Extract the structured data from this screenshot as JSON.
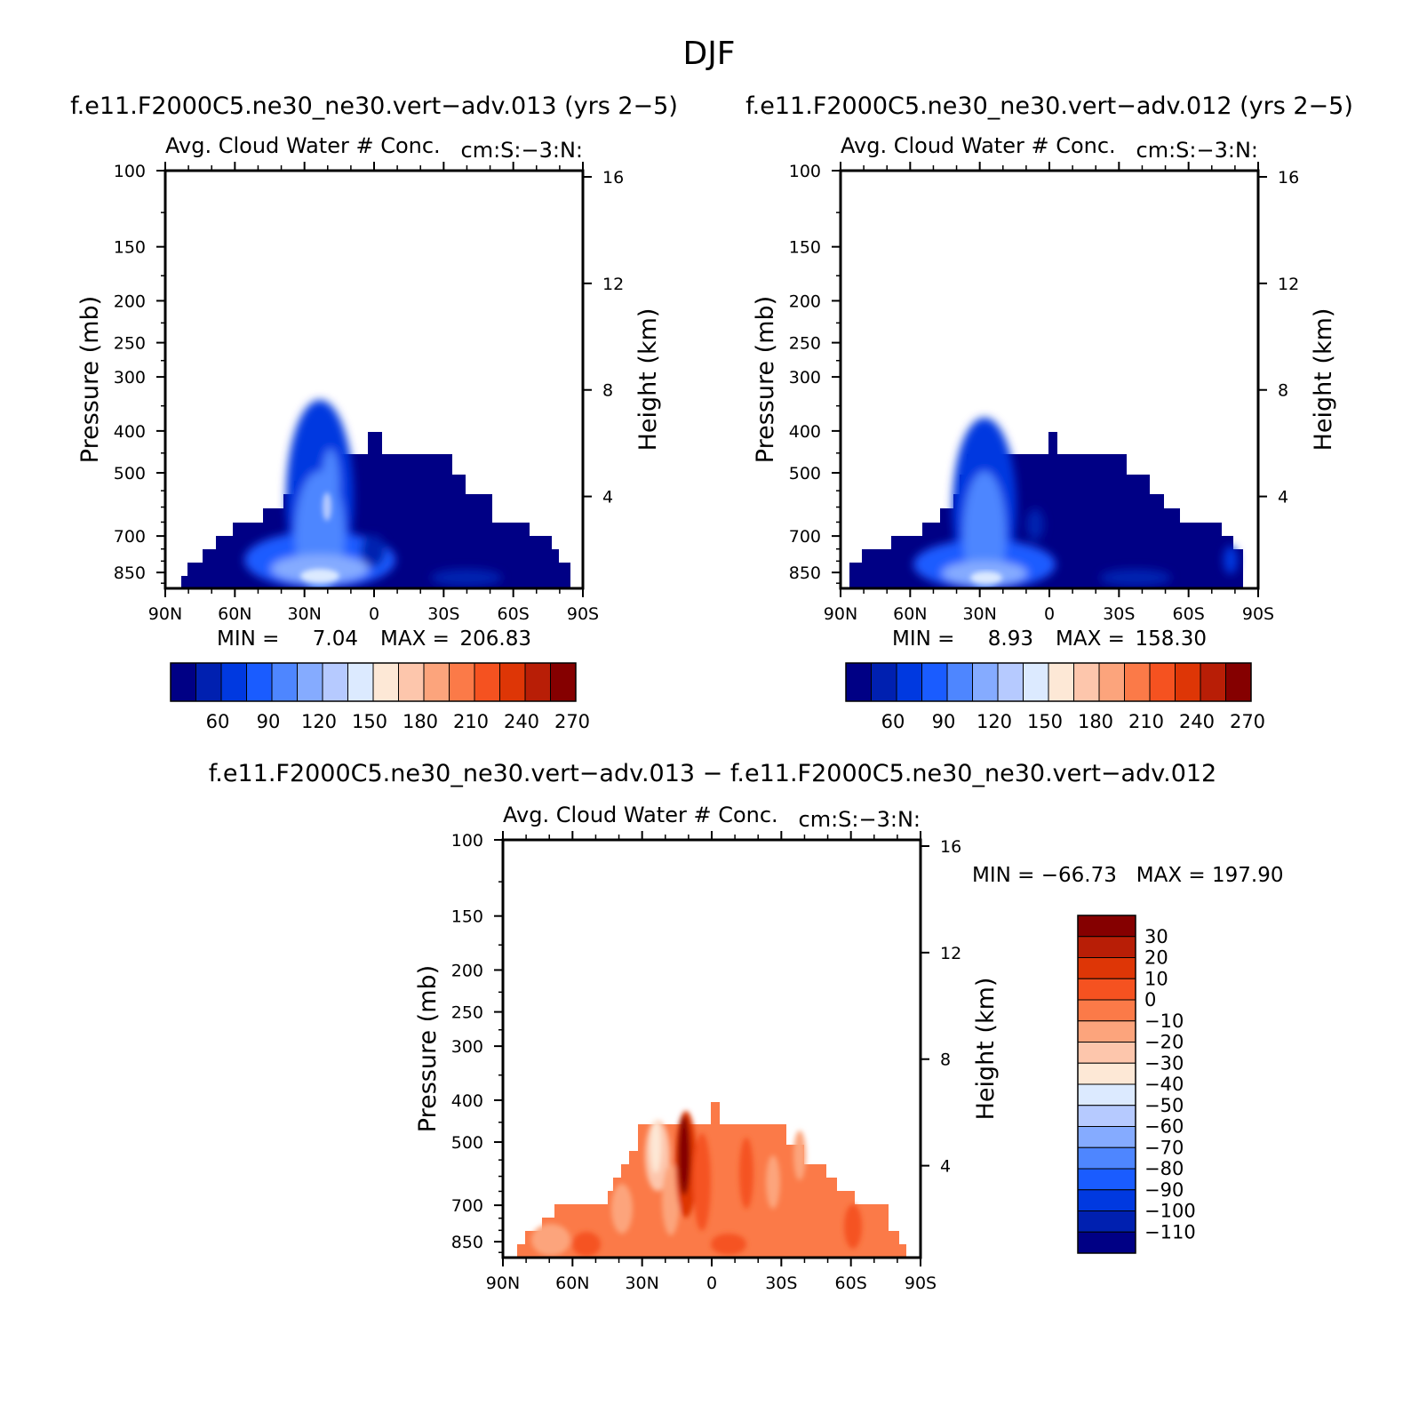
{
  "title": "DJF",
  "colors": {
    "blue_scale": [
      "#000085",
      "#0020b0",
      "#0039e0",
      "#1a5cff",
      "#4e86ff",
      "#85abff",
      "#b6caff",
      "#dceaff",
      "#fde8d6",
      "#fdc6ac",
      "#fca47c",
      "#fb7a48",
      "#f55220",
      "#de3606",
      "#b81e06",
      "#850000"
    ],
    "diff_scale": [
      "#000085",
      "#0020b0",
      "#0039e0",
      "#1a5cff",
      "#4e86ff",
      "#85abff",
      "#b6caff",
      "#dceaff",
      "#fde8d6",
      "#fdc6ac",
      "#fca47c",
      "#fb7a48",
      "#f55220",
      "#de3606",
      "#b81e06",
      "#850000"
    ]
  },
  "panels": {
    "p1": {
      "case_title": "f.e11.F2000C5.ne30_ne30.vert−adv.013 (yrs 2−5)",
      "variable": "Avg. Cloud Water # Conc.",
      "units": "cm:S:−3:N:",
      "min_label": "MIN =",
      "min_value": "7.04",
      "max_label": "MAX =",
      "max_value": "206.83",
      "colorbar_labels": [
        "60",
        "90",
        "120",
        "150",
        "180",
        "210",
        "240",
        "270"
      ]
    },
    "p2": {
      "case_title": "f.e11.F2000C5.ne30_ne30.vert−adv.012 (yrs 2−5)",
      "variable": "Avg. Cloud Water # Conc.",
      "units": "cm:S:−3:N:",
      "min_label": "MIN =",
      "min_value": "8.93",
      "max_label": "MAX =",
      "max_value": "158.30",
      "colorbar_labels": [
        "60",
        "90",
        "120",
        "150",
        "180",
        "210",
        "240",
        "270"
      ]
    },
    "p3": {
      "case_title": "f.e11.F2000C5.ne30_ne30.vert−adv.013 − f.e11.F2000C5.ne30_ne30.vert−adv.012",
      "variable": "Avg. Cloud Water # Conc.",
      "units": "cm:S:−3:N:",
      "minmax": "MIN = −66.73   MAX = 197.90",
      "colorbar_labels": [
        "30",
        "20",
        "10",
        "0",
        "−10",
        "−20",
        "−30",
        "−40",
        "−50",
        "−60",
        "−70",
        "−80",
        "−90",
        "−100",
        "−110"
      ]
    }
  },
  "chart_data": [
    {
      "type": "heatmap",
      "title": "Avg. Cloud Water # Conc.",
      "subtitle": "f.e11.F2000C5.ne30_ne30.vert−adv.013 (yrs 2−5)",
      "units": "cm:S:−3:N:",
      "xlabel": "",
      "ylabel": "Pressure (mb)",
      "ylabel_right": "Height (km)",
      "x_ticks": [
        "90N",
        "60N",
        "30N",
        "0",
        "30S",
        "60S",
        "90S"
      ],
      "y_ticks": [
        100,
        150,
        200,
        250,
        300,
        400,
        500,
        700,
        850
      ],
      "y_right_ticks": [
        16,
        12,
        8,
        4
      ],
      "x_range": [
        90,
        -90
      ],
      "y_range": [
        100,
        925
      ],
      "y_scale": "log",
      "z_min": 7.04,
      "z_max": 206.83,
      "colorbar": [
        "60",
        "90",
        "120",
        "150",
        "180",
        "210",
        "240",
        "270"
      ],
      "region": {
        "description": "cloud number concentration confined below ~430 mb; maximum near 20N low levels",
        "top_pressure_by_lat": [
          [
            -85,
            820
          ],
          [
            -80,
            790
          ],
          [
            -70,
            740
          ],
          [
            -60,
            690
          ],
          [
            -50,
            620
          ],
          [
            -40,
            560
          ],
          [
            -30,
            500
          ],
          [
            -15,
            455
          ],
          [
            0,
            455
          ],
          [
            10,
            455
          ],
          [
            20,
            455
          ],
          [
            30,
            520
          ],
          [
            40,
            600
          ],
          [
            50,
            660
          ],
          [
            60,
            690
          ],
          [
            70,
            770
          ],
          [
            80,
            840
          ],
          [
            85,
            860
          ]
        ],
        "peak": {
          "lat": 20,
          "pressure": 850,
          "value": 206.83
        }
      }
    },
    {
      "type": "heatmap",
      "title": "Avg. Cloud Water # Conc.",
      "subtitle": "f.e11.F2000C5.ne30_ne30.vert−adv.012 (yrs 2−5)",
      "units": "cm:S:−3:N:",
      "xlabel": "",
      "ylabel": "Pressure (mb)",
      "ylabel_right": "Height (km)",
      "x_ticks": [
        "90N",
        "60N",
        "30N",
        "0",
        "30S",
        "60S",
        "90S"
      ],
      "y_ticks": [
        100,
        150,
        200,
        250,
        300,
        400,
        500,
        700,
        850
      ],
      "y_right_ticks": [
        16,
        12,
        8,
        4
      ],
      "x_range": [
        90,
        -90
      ],
      "y_range": [
        100,
        925
      ],
      "y_scale": "log",
      "z_min": 8.93,
      "z_max": 158.3,
      "colorbar": [
        "60",
        "90",
        "120",
        "150",
        "180",
        "210",
        "240",
        "270"
      ]
    },
    {
      "type": "heatmap",
      "title": "Avg. Cloud Water # Conc.",
      "subtitle": "f.e11.F2000C5.ne30_ne30.vert−adv.013 − f.e11.F2000C5.ne30_ne30.vert−adv.012",
      "units": "cm:S:−3:N:",
      "xlabel": "",
      "ylabel": "Pressure (mb)",
      "ylabel_right": "Height (km)",
      "x_ticks": [
        "90N",
        "60N",
        "30N",
        "0",
        "30S",
        "60S",
        "90S"
      ],
      "y_ticks": [
        100,
        150,
        200,
        250,
        300,
        400,
        500,
        700,
        850
      ],
      "y_right_ticks": [
        16,
        12,
        8,
        4
      ],
      "x_range": [
        90,
        -90
      ],
      "y_range": [
        100,
        925
      ],
      "y_scale": "log",
      "z_min": -66.73,
      "z_max": 197.9,
      "colorbar": [
        "30",
        "20",
        "10",
        "0",
        "−10",
        "−20",
        "−30",
        "−40",
        "−50",
        "−60",
        "−70",
        "−80",
        "−90",
        "−100",
        "−110"
      ]
    }
  ]
}
